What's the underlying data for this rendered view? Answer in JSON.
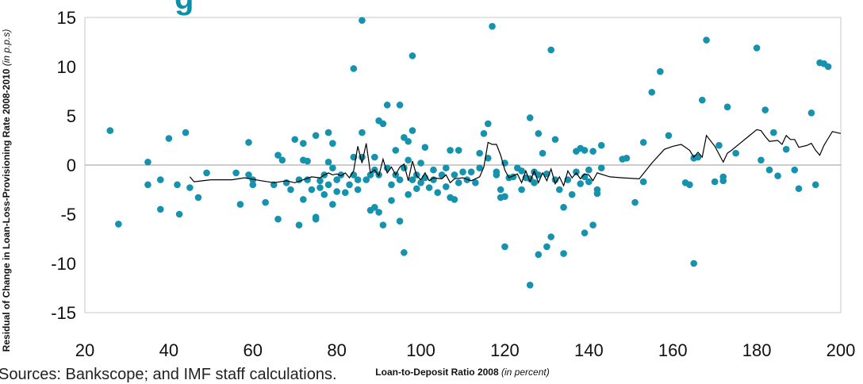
{
  "fragments": {
    "title_fragment": "g",
    "source_fragment": "Sources: Bankscope; and IMF staff calculations."
  },
  "chart_data": {
    "type": "scatter",
    "xlabel": "Loan-to-Deposit Ratio 2008",
    "xlabel_unit": "(in percent)",
    "ylabel": "Residual of Change in Loan-Loss-Provisioning Rate 2008-2010",
    "ylabel_unit": "(in p.p.s)",
    "xlim": [
      20,
      200
    ],
    "ylim": [
      -15,
      15
    ],
    "x_ticks": [
      20,
      40,
      60,
      80,
      100,
      120,
      140,
      160,
      180,
      200
    ],
    "y_ticks": [
      -15,
      -10,
      -5,
      0,
      5,
      10,
      15
    ],
    "grid": false,
    "colors": {
      "points": "#1592ad",
      "line": "#000000",
      "frame": "#c8c8c8"
    },
    "series": [
      {
        "type": "scatter",
        "points": [
          [
            26,
            3.5
          ],
          [
            28,
            -6
          ],
          [
            35,
            -2
          ],
          [
            35,
            0.3
          ],
          [
            38,
            -1.5
          ],
          [
            38,
            -4.5
          ],
          [
            40,
            2.7
          ],
          [
            42,
            -2
          ],
          [
            42.5,
            -5
          ],
          [
            44,
            3.3
          ],
          [
            45,
            -2.3
          ],
          [
            47,
            -3.3
          ],
          [
            49,
            -0.8
          ],
          [
            56,
            -0.8
          ],
          [
            57,
            -4
          ],
          [
            59,
            -1
          ],
          [
            59,
            2.3
          ],
          [
            60,
            -1.5
          ],
          [
            60,
            -2
          ],
          [
            63,
            -3.8
          ],
          [
            65,
            -2
          ],
          [
            66,
            -5.5
          ],
          [
            66,
            1
          ],
          [
            67,
            0.5
          ],
          [
            68,
            -1.8
          ],
          [
            69,
            -2.5
          ],
          [
            70,
            2.6
          ],
          [
            71,
            -6.1
          ],
          [
            71,
            -1.5
          ],
          [
            72,
            -3.5
          ],
          [
            72,
            2.2
          ],
          [
            72,
            0.5
          ],
          [
            73,
            -1.5
          ],
          [
            73,
            0.4
          ],
          [
            74,
            -2.5
          ],
          [
            75,
            3
          ],
          [
            75,
            -5.5
          ],
          [
            75,
            -5.3
          ],
          [
            76,
            -1.6
          ],
          [
            76,
            -2.3
          ],
          [
            77,
            -1
          ],
          [
            77,
            -3
          ],
          [
            78,
            3.3
          ],
          [
            78,
            0.3
          ],
          [
            78,
            -2
          ],
          [
            79,
            -4
          ],
          [
            79,
            -0.3
          ],
          [
            79,
            2.2
          ],
          [
            80,
            -1.5
          ],
          [
            80,
            -2.7
          ],
          [
            81,
            -1
          ],
          [
            82,
            -2.8
          ],
          [
            83,
            -2
          ],
          [
            84,
            -1
          ],
          [
            84,
            0.8
          ],
          [
            84,
            9.8
          ],
          [
            85,
            -2.5
          ],
          [
            85,
            -1.5
          ],
          [
            86,
            0.8
          ],
          [
            86,
            14.7
          ],
          [
            86,
            3.3
          ],
          [
            87,
            -1.5
          ],
          [
            88,
            -4.6
          ],
          [
            88,
            -1
          ],
          [
            89,
            -0.5
          ],
          [
            89,
            -4.3
          ],
          [
            89,
            0.8
          ],
          [
            90,
            4.5
          ],
          [
            90,
            -4.8
          ],
          [
            90,
            -1
          ],
          [
            91,
            4.2
          ],
          [
            91,
            -6.1
          ],
          [
            92,
            6.1
          ],
          [
            92,
            -0.3
          ],
          [
            93,
            -2
          ],
          [
            93,
            -3.6
          ],
          [
            94,
            1.5
          ],
          [
            94,
            -1
          ],
          [
            95,
            6.1
          ],
          [
            95,
            -1.5
          ],
          [
            95,
            -5.7
          ],
          [
            96,
            2.8
          ],
          [
            96,
            -8.9
          ],
          [
            96,
            -0.3
          ],
          [
            97,
            2.4
          ],
          [
            97,
            0.5
          ],
          [
            97,
            -3
          ],
          [
            98,
            3.5
          ],
          [
            98,
            11.1
          ],
          [
            98,
            -1.5
          ],
          [
            99,
            -1
          ],
          [
            99,
            -2.4
          ],
          [
            100,
            -1.8
          ],
          [
            100,
            0.2
          ],
          [
            101,
            -1.3
          ],
          [
            101,
            1.8
          ],
          [
            102,
            -2.3
          ],
          [
            103,
            -0.5
          ],
          [
            103,
            -1.5
          ],
          [
            104,
            -2.8
          ],
          [
            105,
            -1
          ],
          [
            106,
            -2.2
          ],
          [
            106,
            -0.3
          ],
          [
            107,
            1.5
          ],
          [
            107,
            -3.3
          ],
          [
            108,
            -1
          ],
          [
            108,
            -3.5
          ],
          [
            109,
            -1.8
          ],
          [
            109,
            1.5
          ],
          [
            110,
            -0.7
          ],
          [
            111,
            -1.5
          ],
          [
            112,
            -0.7
          ],
          [
            113,
            -1.8
          ],
          [
            114,
            -0.3
          ],
          [
            114,
            1.2
          ],
          [
            115,
            3.2
          ],
          [
            116,
            4.2
          ],
          [
            116,
            0.7
          ],
          [
            117,
            14.1
          ],
          [
            118,
            -1
          ],
          [
            118,
            -0.7
          ],
          [
            119,
            -2.5
          ],
          [
            119,
            -3.3
          ],
          [
            120,
            -3.2
          ],
          [
            120,
            -8.3
          ],
          [
            120,
            0.2
          ],
          [
            121,
            -1.3
          ],
          [
            122,
            -1.2
          ],
          [
            123,
            -0.3
          ],
          [
            124,
            -0.6
          ],
          [
            124,
            -2.5
          ],
          [
            125,
            -1.3
          ],
          [
            126,
            -1.4
          ],
          [
            126,
            -12.2
          ],
          [
            126,
            4.8
          ],
          [
            127,
            -0.7
          ],
          [
            127,
            -1.8
          ],
          [
            128,
            -1
          ],
          [
            128,
            3.2
          ],
          [
            128,
            -9.1
          ],
          [
            129,
            1.2
          ],
          [
            130,
            -0.9
          ],
          [
            130,
            -8.3
          ],
          [
            131,
            -7.3
          ],
          [
            131,
            11.7
          ],
          [
            132,
            -1.5
          ],
          [
            132,
            2.6
          ],
          [
            133,
            -2.5
          ],
          [
            134,
            -9
          ],
          [
            134,
            -4.3
          ],
          [
            135,
            -1.5
          ],
          [
            136,
            -3
          ],
          [
            137,
            1.4
          ],
          [
            137,
            -0.7
          ],
          [
            138,
            1.7
          ],
          [
            138,
            -1.9
          ],
          [
            139,
            1.5
          ],
          [
            139,
            -6.9
          ],
          [
            139,
            -1.2
          ],
          [
            140,
            -1.7
          ],
          [
            140,
            -0.5
          ],
          [
            141,
            1.4
          ],
          [
            141,
            -6.1
          ],
          [
            142,
            -2.5
          ],
          [
            142,
            -2.9
          ],
          [
            143,
            -0.3
          ],
          [
            143,
            2
          ],
          [
            148,
            0.6
          ],
          [
            149,
            0.7
          ],
          [
            151,
            -3.8
          ],
          [
            153,
            -1.7
          ],
          [
            153,
            2.3
          ],
          [
            155,
            7.4
          ],
          [
            157,
            9.5
          ],
          [
            159,
            3
          ],
          [
            163,
            -1.8
          ],
          [
            164,
            -2
          ],
          [
            165,
            -10
          ],
          [
            165,
            0.7
          ],
          [
            166,
            0.8
          ],
          [
            167,
            6.6
          ],
          [
            168,
            12.7
          ],
          [
            170,
            -1.7
          ],
          [
            171,
            2
          ],
          [
            172,
            -1.2
          ],
          [
            172,
            -1.6
          ],
          [
            173,
            5.9
          ],
          [
            175,
            1.2
          ],
          [
            180,
            11.9
          ],
          [
            181,
            0.5
          ],
          [
            182,
            5.6
          ],
          [
            183,
            -0.5
          ],
          [
            184,
            3.3
          ],
          [
            185,
            -1.1
          ],
          [
            187,
            1.6
          ],
          [
            189,
            -0.5
          ],
          [
            190,
            -2.4
          ],
          [
            193,
            5.3
          ],
          [
            194,
            -2
          ],
          [
            195,
            10.4
          ],
          [
            196,
            10.3
          ],
          [
            197,
            10
          ]
        ]
      },
      {
        "type": "line",
        "points": [
          [
            45,
            -1.2
          ],
          [
            46,
            -1.7
          ],
          [
            50,
            -1.5
          ],
          [
            55,
            -1.5
          ],
          [
            58,
            -1.3
          ],
          [
            62,
            -1.6
          ],
          [
            65,
            -1.8
          ],
          [
            68,
            -1.6
          ],
          [
            70,
            -1.8
          ],
          [
            72,
            -1.5
          ],
          [
            74,
            -1.2
          ],
          [
            76,
            -1.3
          ],
          [
            77,
            -1
          ],
          [
            78,
            -0.8
          ],
          [
            79,
            -1
          ],
          [
            80,
            -0.9
          ],
          [
            81,
            -1.1
          ],
          [
            82,
            -0.8
          ],
          [
            83,
            -1.3
          ],
          [
            84,
            -0.6
          ],
          [
            85,
            1.9
          ],
          [
            86,
            0.2
          ],
          [
            87,
            2.2
          ],
          [
            88,
            -0.8
          ],
          [
            89,
            -0.5
          ],
          [
            90,
            -1.1
          ],
          [
            91,
            0.6
          ],
          [
            92,
            -0.8
          ],
          [
            93,
            -0.2
          ],
          [
            94,
            -1
          ],
          [
            95,
            -0.2
          ],
          [
            96,
            0.1
          ],
          [
            97,
            -1.6
          ],
          [
            98,
            0.4
          ],
          [
            99,
            -1.1
          ],
          [
            100,
            -1.5
          ],
          [
            101,
            -0.8
          ],
          [
            102,
            -1.6
          ],
          [
            103,
            -1.3
          ],
          [
            105,
            -1.4
          ],
          [
            106,
            -1
          ],
          [
            107,
            -1.8
          ],
          [
            108,
            -1.4
          ],
          [
            110,
            -1.3
          ],
          [
            112,
            -1.6
          ],
          [
            114,
            -1.2
          ],
          [
            115,
            -0.2
          ],
          [
            116,
            2.3
          ],
          [
            117,
            2.1
          ],
          [
            118,
            2.1
          ],
          [
            119,
            1
          ],
          [
            120,
            -0.5
          ],
          [
            121,
            -1.3
          ],
          [
            122,
            -1.1
          ],
          [
            123,
            -0.9
          ],
          [
            124,
            -1.8
          ],
          [
            125,
            -0.6
          ],
          [
            126,
            -1.7
          ],
          [
            127,
            -0.6
          ],
          [
            128,
            -1.8
          ],
          [
            129,
            -0.8
          ],
          [
            130,
            -1.6
          ],
          [
            131,
            -0.4
          ],
          [
            132,
            -1.9
          ],
          [
            133,
            -1.2
          ],
          [
            134,
            -2.1
          ],
          [
            135,
            -0.6
          ],
          [
            136,
            -1.3
          ],
          [
            137,
            -0.8
          ],
          [
            138,
            -1.4
          ],
          [
            139,
            -0.9
          ],
          [
            140,
            -1
          ],
          [
            141,
            -1.6
          ],
          [
            142,
            -0.8
          ],
          [
            145,
            -1.2
          ],
          [
            148,
            -1.3
          ],
          [
            152,
            -1.4
          ],
          [
            155,
            0.2
          ],
          [
            158,
            1.6
          ],
          [
            160,
            1.9
          ],
          [
            162,
            2.1
          ],
          [
            164,
            1.5
          ],
          [
            165,
            0.8
          ],
          [
            166,
            1.3
          ],
          [
            167,
            0.8
          ],
          [
            168,
            3
          ],
          [
            170,
            1.9
          ],
          [
            172,
            0.3
          ],
          [
            173,
            1.2
          ],
          [
            174,
            1.5
          ],
          [
            176,
            2.2
          ],
          [
            178,
            2.9
          ],
          [
            180,
            3.6
          ],
          [
            181,
            3.5
          ],
          [
            182,
            2.9
          ],
          [
            183,
            2.4
          ],
          [
            185,
            2.5
          ],
          [
            186,
            2.1
          ],
          [
            187,
            3
          ],
          [
            188,
            2.6
          ],
          [
            189,
            2.6
          ],
          [
            190,
            1.8
          ],
          [
            192,
            2
          ],
          [
            193,
            2.2
          ],
          [
            194,
            1.5
          ],
          [
            195,
            1
          ],
          [
            196,
            2
          ],
          [
            197,
            2.7
          ],
          [
            198,
            3.4
          ],
          [
            200,
            3.2
          ]
        ]
      }
    ]
  }
}
